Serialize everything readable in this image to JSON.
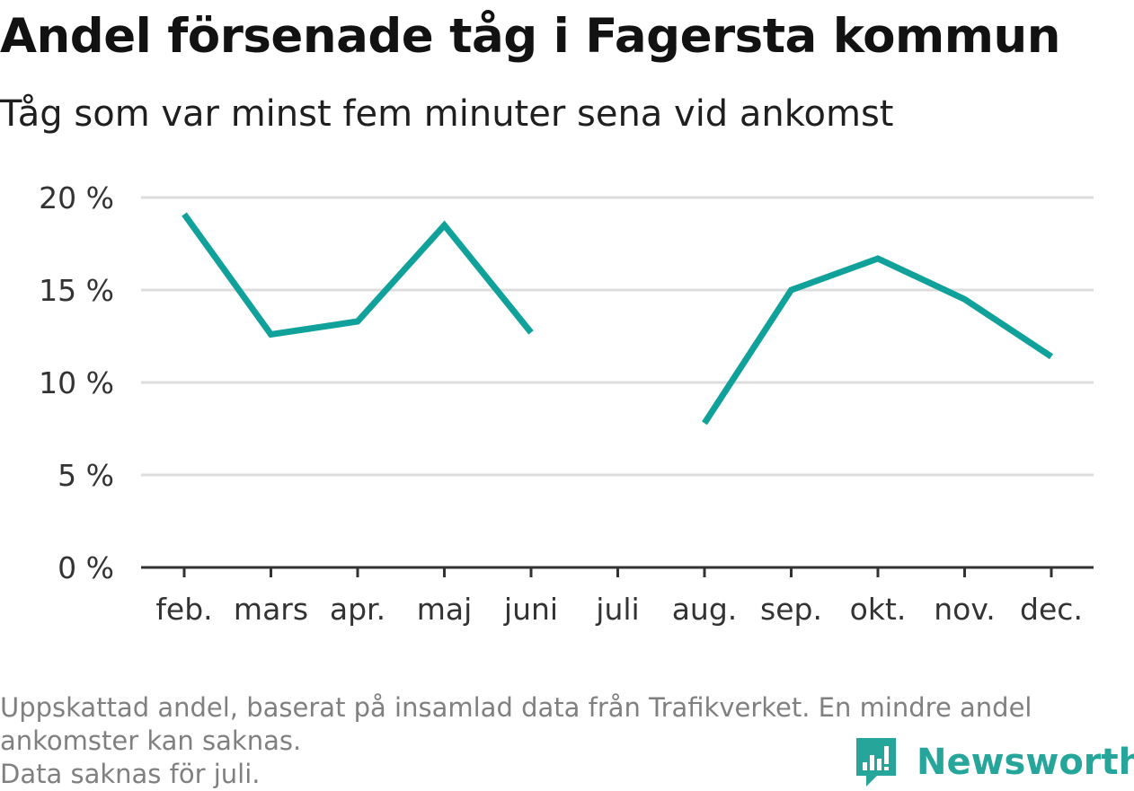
{
  "title": "Andel försenade tåg i Fagersta kommun",
  "subtitle": "Tåg som var minst fem minuter sena vid ankomst",
  "footnote": {
    "line1": "Uppskattad andel, baserat på insamlad data från Trafikverket. En mindre andel",
    "line2": "ankomster kan saknas.",
    "line3": "Data saknas för juli."
  },
  "brand": {
    "name": "Newsworthy",
    "logo_icon": "bar-chart-speech-bubble-icon",
    "color": "#26a69a"
  },
  "chart_data": {
    "type": "line",
    "categories": [
      "feb.",
      "mars",
      "apr.",
      "maj",
      "juni",
      "juli",
      "aug.",
      "sep.",
      "okt.",
      "nov.",
      "dec."
    ],
    "series": [
      {
        "values": [
          19.1,
          12.6,
          13.3,
          18.5,
          12.7,
          null,
          7.8,
          15.0,
          16.7,
          14.5,
          11.4
        ],
        "color": "#10a29a"
      }
    ],
    "y_ticks": [
      {
        "value": 0,
        "label": "0 %"
      },
      {
        "value": 5,
        "label": "5 %"
      },
      {
        "value": 10,
        "label": "10 %"
      },
      {
        "value": 15,
        "label": "15 %"
      },
      {
        "value": 20,
        "label": "20 %"
      }
    ],
    "ylim": [
      0,
      20
    ],
    "grid": true,
    "grid_color": "#dddddd",
    "axis_color": "#333333"
  }
}
